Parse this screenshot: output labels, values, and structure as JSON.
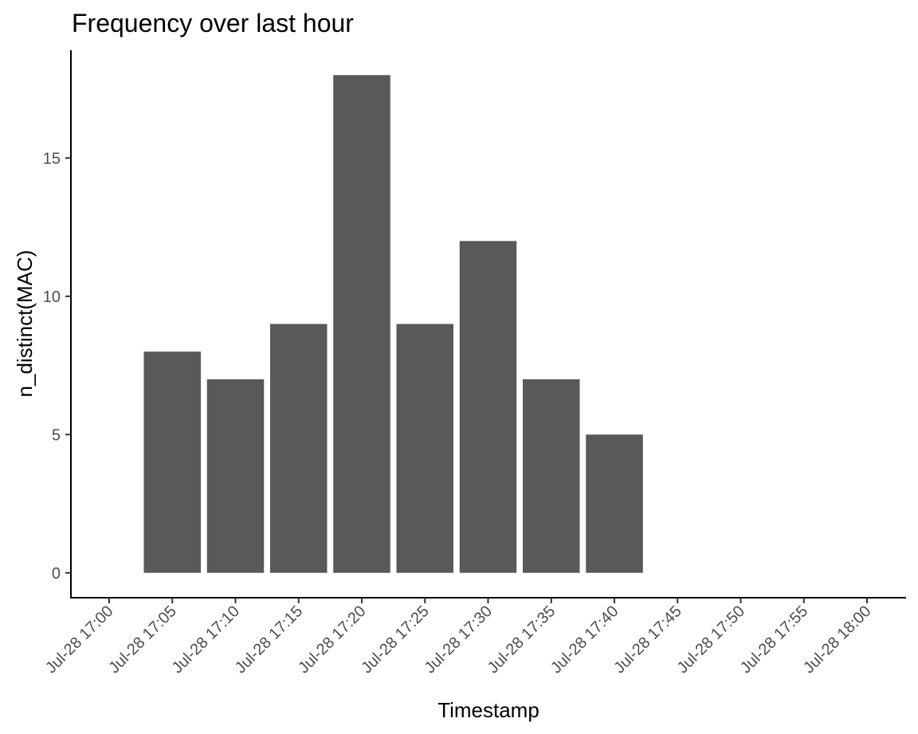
{
  "chart_data": {
    "type": "bar",
    "title": "Frequency over last hour",
    "xlabel": "Timestamp",
    "ylabel": "n_distinct(MAC)",
    "x_ticks": [
      "Jul-28 17:00",
      "Jul-28 17:05",
      "Jul-28 17:10",
      "Jul-28 17:15",
      "Jul-28 17:20",
      "Jul-28 17:25",
      "Jul-28 17:30",
      "Jul-28 17:35",
      "Jul-28 17:40",
      "Jul-28 17:45",
      "Jul-28 17:50",
      "Jul-28 17:55",
      "Jul-28 18:00"
    ],
    "categories": [
      "Jul-28 17:05",
      "Jul-28 17:10",
      "Jul-28 17:15",
      "Jul-28 17:20",
      "Jul-28 17:25",
      "Jul-28 17:30",
      "Jul-28 17:35",
      "Jul-28 17:40"
    ],
    "values": [
      8,
      7,
      9,
      18,
      9,
      12,
      7,
      5
    ],
    "y_ticks": [
      0,
      5,
      10,
      15
    ],
    "ylim": [
      -0.9,
      18.9
    ],
    "bar_color": "#595959",
    "axis_color": "#000000",
    "tick_label_color": "#4d4d4d",
    "grid": false
  }
}
